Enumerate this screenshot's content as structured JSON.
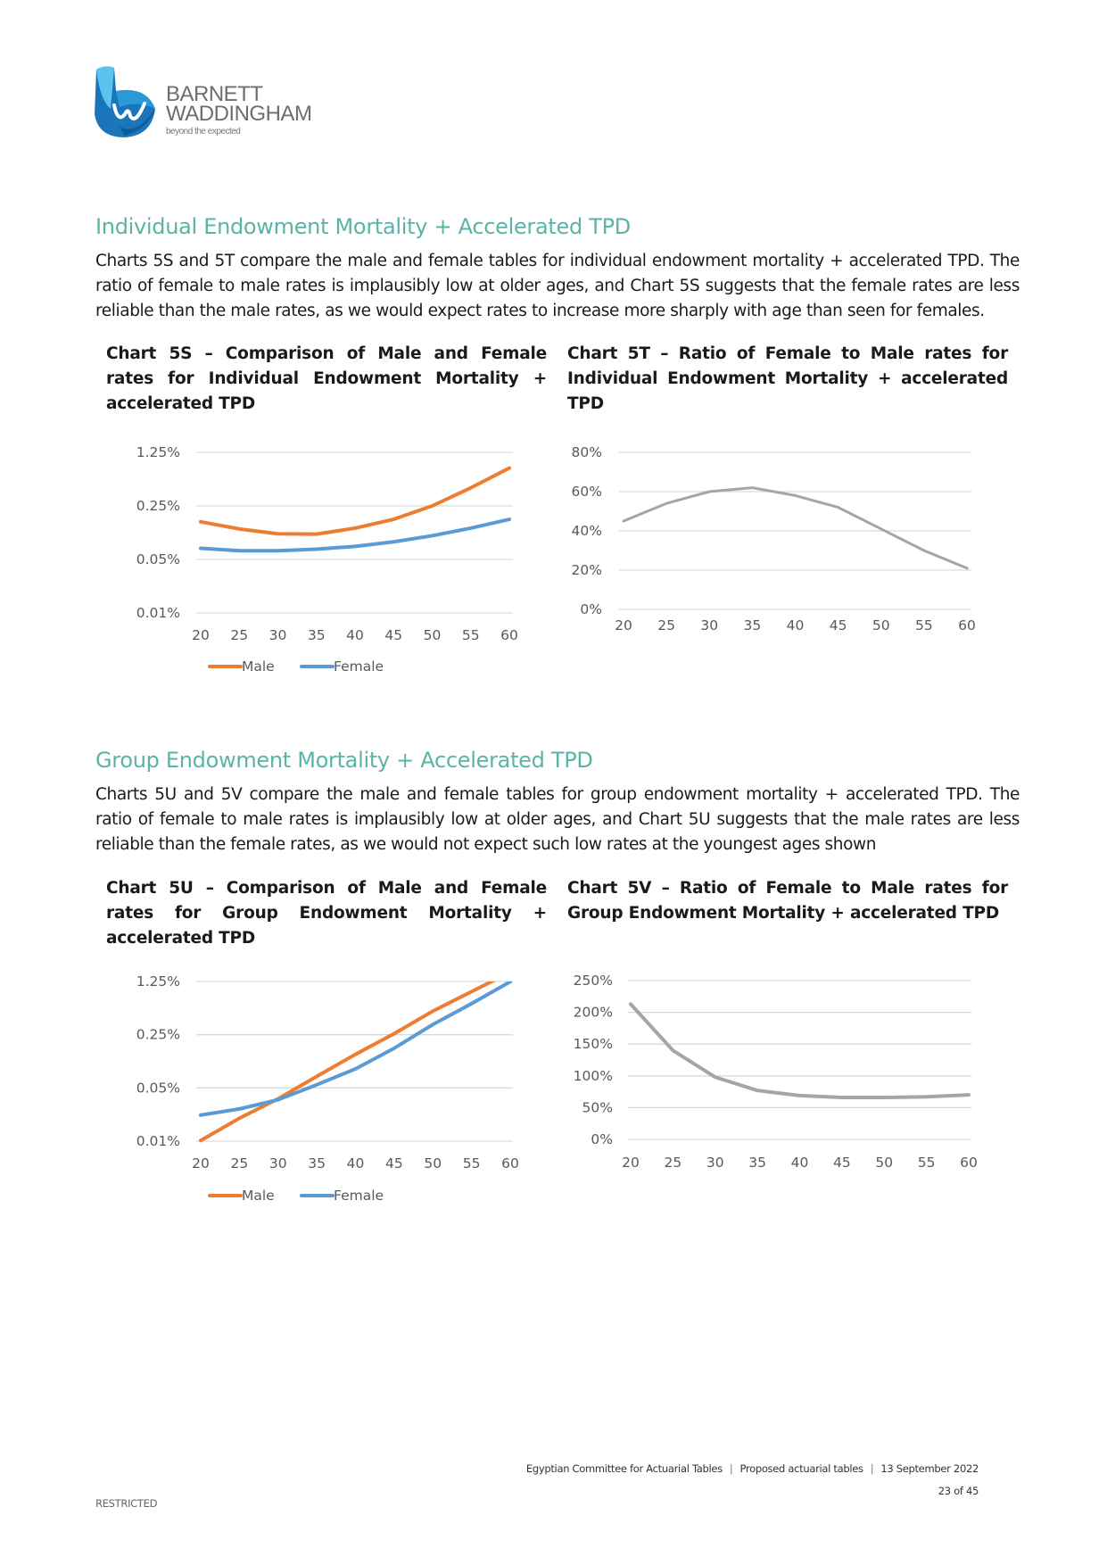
{
  "logo": {
    "line1": "BARNETT",
    "line2": "WADDINGHAM",
    "tagline": "beyond the expected"
  },
  "section1": {
    "heading": "Individual Endowment Mortality + Accelerated TPD",
    "paragraph": "Charts 5S and 5T compare the male and female tables for individual endowment mortality + accelerated TPD. The ratio of female to male rates is implausibly low at older ages, and Chart 5S suggests that the female rates are less reliable than the male rates, as we would expect rates to increase more sharply with age than seen for females.",
    "chart_left_title": "Chart 5S – Comparison of Male and Female rates for Individual Endowment Mortality + accelerated TPD",
    "chart_right_title": "Chart 5T – Ratio of Female to Male rates for Individual Endowment Mortality + accelerated TPD"
  },
  "section2": {
    "heading": "Group Endowment Mortality + Accelerated TPD",
    "paragraph": "Charts 5U and 5V compare the male and female tables for group endowment mortality + accelerated TPD. The ratio of female to male rates is implausibly low at older ages, and Chart 5U suggests that the male rates are less reliable than the female rates, as we would not expect such low rates at the youngest ages shown",
    "chart_left_title": "Chart 5U – Comparison of Male and Female rates for Group Endowment Mortality + accelerated TPD",
    "chart_right_title": "Chart 5V – Ratio of Female to Male rates for Group Endowment Mortality + accelerated TPD"
  },
  "chart_data": [
    {
      "id": "5S",
      "type": "line",
      "yscale": "log",
      "grid": true,
      "legend": "bottom",
      "x": [
        20,
        25,
        30,
        35,
        40,
        45,
        50,
        55,
        60
      ],
      "xticks": [
        "20",
        "25",
        "30",
        "35",
        "40",
        "45",
        "50",
        "55",
        "60"
      ],
      "yticks": [
        0.01,
        0.05,
        0.25,
        1.25
      ],
      "ytick_labels": [
        "0.01%",
        "0.05%",
        "0.25%",
        "1.25%"
      ],
      "ylim": [
        0.01,
        1.25
      ],
      "series": [
        {
          "name": "Male",
          "color": "#ed7d31",
          "values": [
            0.155,
            0.125,
            0.108,
            0.107,
            0.128,
            0.167,
            0.25,
            0.43,
            0.78
          ]
        },
        {
          "name": "Female",
          "color": "#5b9bd5",
          "values": [
            0.07,
            0.065,
            0.065,
            0.068,
            0.074,
            0.085,
            0.102,
            0.128,
            0.167
          ]
        }
      ]
    },
    {
      "id": "5T",
      "type": "line",
      "grid": true,
      "x": [
        20,
        25,
        30,
        35,
        40,
        45,
        50,
        55,
        60
      ],
      "xticks": [
        "20",
        "25",
        "30",
        "35",
        "40",
        "45",
        "50",
        "55",
        "60"
      ],
      "yticks": [
        0,
        20,
        40,
        60,
        80
      ],
      "ytick_labels": [
        "0%",
        "20%",
        "40%",
        "60%",
        "80%"
      ],
      "ylim": [
        0,
        80
      ],
      "series": [
        {
          "color": "#a5a5a5",
          "values": [
            45,
            54,
            60,
            62,
            58,
            52,
            41,
            30,
            21
          ]
        }
      ]
    },
    {
      "id": "5U",
      "type": "line",
      "yscale": "log",
      "grid": true,
      "legend": "bottom",
      "x": [
        20,
        25,
        30,
        35,
        40,
        45,
        50,
        55,
        60
      ],
      "xticks": [
        "20",
        "25",
        "30",
        "35",
        "40",
        "45",
        "50",
        "55",
        "60"
      ],
      "yticks": [
        0.01,
        0.05,
        0.25,
        1.25
      ],
      "ytick_labels": [
        "0.01%",
        "0.05%",
        "0.25%",
        "1.25%"
      ],
      "ylim": [
        0.01,
        1.25
      ],
      "series": [
        {
          "name": "Male",
          "color": "#ed7d31",
          "values": [
            0.0102,
            0.02,
            0.036,
            0.071,
            0.138,
            0.258,
            0.51,
            0.92,
            1.65
          ]
        },
        {
          "name": "Female",
          "color": "#5b9bd5",
          "values": [
            0.022,
            0.0265,
            0.035,
            0.055,
            0.089,
            0.166,
            0.34,
            0.64,
            1.24
          ]
        }
      ]
    },
    {
      "id": "5V",
      "type": "line",
      "grid": true,
      "x": [
        20,
        25,
        30,
        35,
        40,
        45,
        50,
        55,
        60
      ],
      "xticks": [
        "20",
        "25",
        "30",
        "35",
        "40",
        "45",
        "50",
        "55",
        "60"
      ],
      "yticks": [
        0,
        50,
        100,
        150,
        200,
        250
      ],
      "ytick_labels": [
        "0%",
        "50%",
        "100%",
        "150%",
        "200%",
        "250%"
      ],
      "ylim": [
        0,
        250
      ],
      "series": [
        {
          "color": "#a5a5a5",
          "values": [
            213,
            140,
            98,
            77,
            69,
            66,
            66,
            67,
            70
          ]
        }
      ]
    }
  ],
  "footer": {
    "committee": "Egyptian Committee for Actuarial Tables",
    "doc": "Proposed actuarial tables",
    "date": "13 September 2022",
    "page": "23 of 45",
    "classification": "RESTRICTED"
  }
}
